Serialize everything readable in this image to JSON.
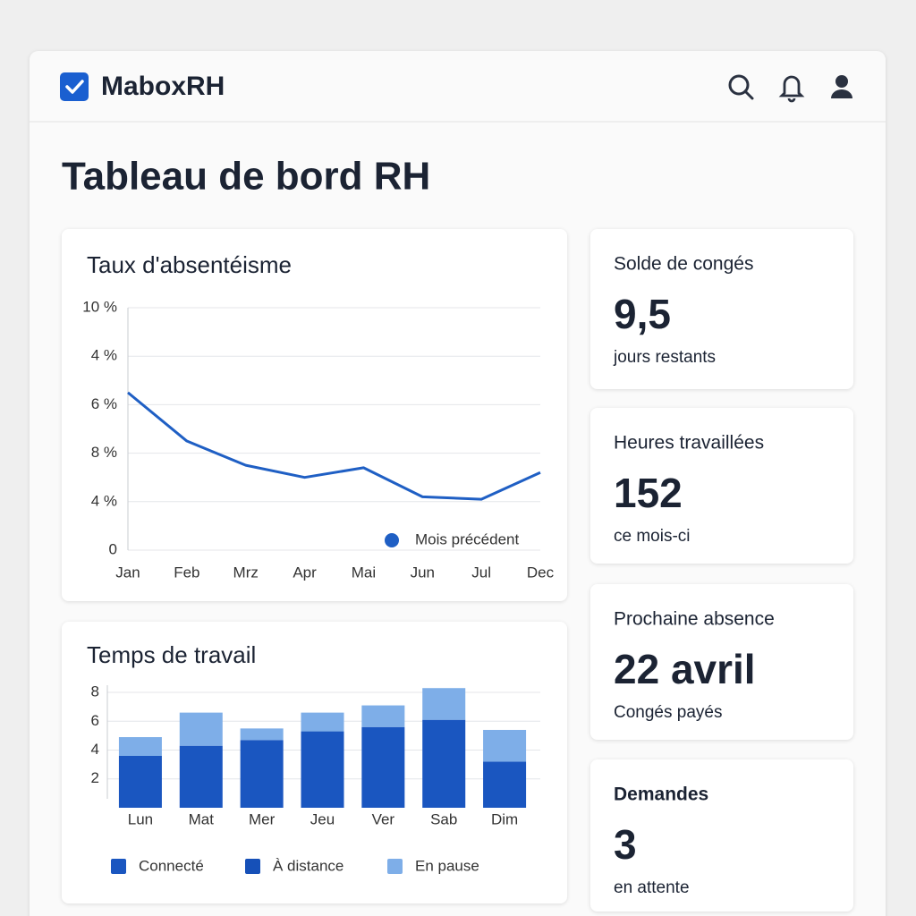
{
  "header": {
    "brand": "MaboxRH"
  },
  "page_title": "Tableau de bord RH",
  "chart_data": [
    {
      "type": "line",
      "title": "Taux d'absentéisme",
      "categories": [
        "Jan",
        "Feb",
        "Mrz",
        "Apr",
        "Mai",
        "Jun",
        "Jul",
        "Dec"
      ],
      "y_axis_labels": [
        "10 %",
        "4 %",
        "6 %",
        "8 %",
        "4 %",
        "0"
      ],
      "ylim": [
        0,
        10
      ],
      "grid": true,
      "legend": "bottom-right",
      "series": [
        {
          "name": "Mois précédent",
          "color": "#1f5fc4",
          "values": [
            6.5,
            4.5,
            3.5,
            3.0,
            3.4,
            2.2,
            2.1,
            3.2
          ]
        }
      ]
    },
    {
      "type": "stacked_bar",
      "title": "Temps de travail",
      "categories": [
        "Lun",
        "Mat",
        "Mer",
        "Jeu",
        "Ver",
        "Sab",
        "Dim"
      ],
      "ylim": [
        0,
        8.5
      ],
      "yticks": [
        2,
        4,
        6,
        8
      ],
      "grid": true,
      "legend": "bottom",
      "series": [
        {
          "name": "Connecté",
          "color": "#1a56c0",
          "values": [
            3.6,
            4.3,
            4.7,
            5.3,
            5.6,
            6.1,
            3.2
          ]
        },
        {
          "name": "À distance",
          "color": "#1650b8",
          "values": [
            0,
            0,
            0,
            0,
            0,
            0,
            0
          ]
        },
        {
          "name": "En pause",
          "color": "#7eaee8",
          "values": [
            1.3,
            2.3,
            0.8,
            1.3,
            1.5,
            2.2,
            2.2
          ]
        }
      ]
    }
  ],
  "cards": [
    {
      "label": "Solde de congés",
      "value": "9,5",
      "caption": "jours restants"
    },
    {
      "label": "Heures travaillées",
      "value": 152,
      "caption": "ce mois-ci"
    },
    {
      "label": "Prochaine absence",
      "value": "22 avril",
      "caption": "Congés payés"
    },
    {
      "label": "Demandes",
      "value": 3,
      "caption": "en attente"
    }
  ]
}
